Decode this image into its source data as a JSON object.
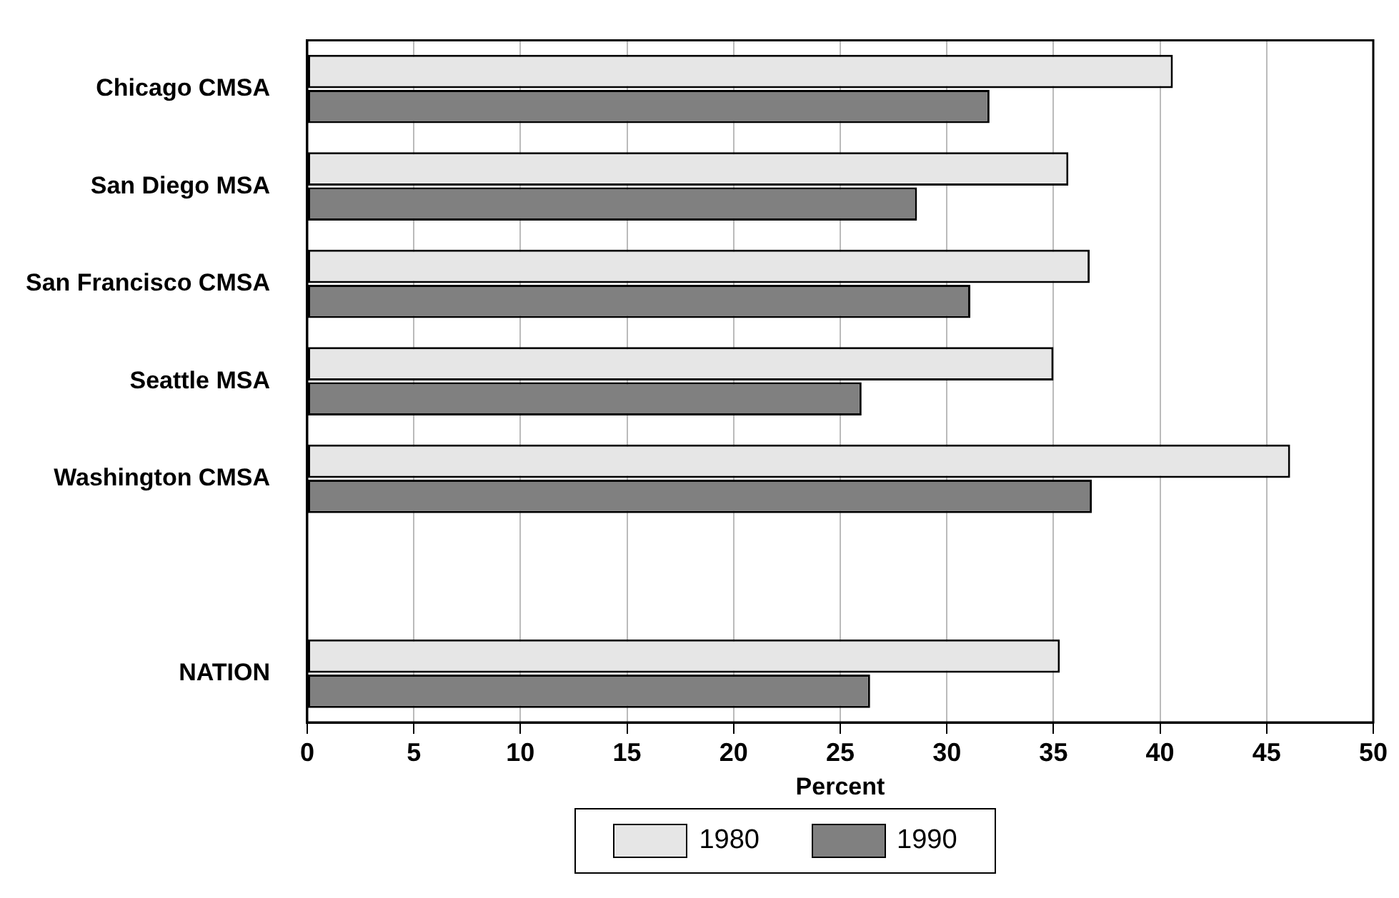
{
  "chart_data": {
    "type": "bar",
    "orientation": "horizontal",
    "xlabel": "Percent",
    "categories": [
      "Chicago CMSA",
      "San Diego MSA",
      "San Francisco CMSA",
      "Seattle MSA",
      "Washington CMSA",
      null,
      "NATION"
    ],
    "series": [
      {
        "name": "1980",
        "color": "#e6e6e6",
        "values": [
          40.6,
          35.7,
          36.7,
          35.0,
          46.1,
          null,
          35.3
        ]
      },
      {
        "name": "1990",
        "color": "#808080",
        "values": [
          32.0,
          28.6,
          31.1,
          26.0,
          36.8,
          null,
          26.4
        ]
      }
    ],
    "xlim": [
      0,
      50
    ],
    "xticks": [
      0,
      5,
      10,
      15,
      20,
      25,
      30,
      35,
      40,
      45,
      50
    ],
    "grid": "x",
    "legend": "bottom"
  }
}
